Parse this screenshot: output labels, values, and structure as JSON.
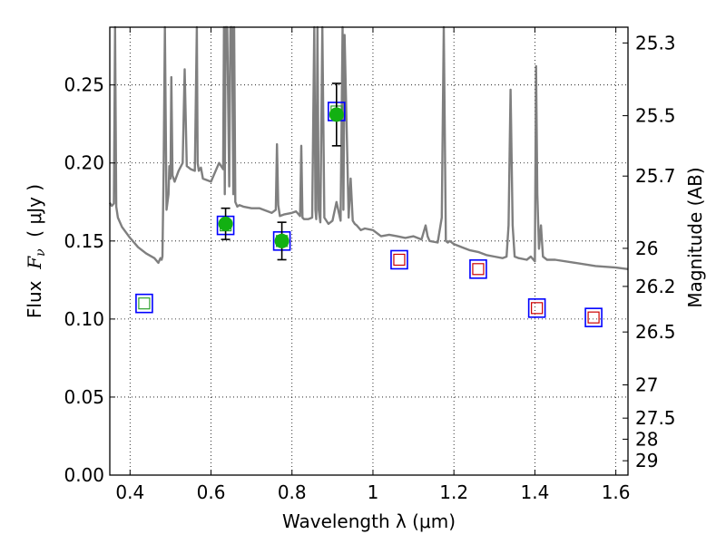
{
  "chart_data": {
    "type": "scatter",
    "xlabel": "Wavelength  λ (μm)",
    "ylabel_parts": {
      "prefix": "Flux  ",
      "symbol": "F",
      "subscript": "ν",
      "suffix": "  ( μJy )"
    },
    "ylabel_right": "Magnitude (AB)",
    "xlim": [
      0.35,
      1.63
    ],
    "ylim": [
      0.0,
      0.287
    ],
    "grid": true,
    "x_ticks": [
      0.4,
      0.6,
      0.8,
      1.0,
      1.2,
      1.4,
      1.6
    ],
    "x_tick_labels": [
      "0.4",
      "0.6",
      "0.8",
      "1",
      "1.2",
      "1.4",
      "1.6"
    ],
    "y_ticks": [
      0.0,
      0.05,
      0.1,
      0.15,
      0.2,
      0.25
    ],
    "y_tick_labels": [
      "0.00",
      "0.05",
      "0.10",
      "0.15",
      "0.20",
      "0.25"
    ],
    "right_ticks": [
      {
        "label": "25.3",
        "flux": 0.2769
      },
      {
        "label": "25.5",
        "flux": 0.2303
      },
      {
        "label": "25.7",
        "flux": 0.1916
      },
      {
        "label": "26",
        "flux": 0.1453
      },
      {
        "label": "26.2",
        "flux": 0.1209
      },
      {
        "label": "26.5",
        "flux": 0.0917
      },
      {
        "label": "27",
        "flux": 0.0578
      },
      {
        "label": "27.5",
        "flux": 0.0365
      },
      {
        "label": "28",
        "flux": 0.023
      },
      {
        "label": "29",
        "flux": 0.0092
      }
    ],
    "model_spectrum": {
      "color": "#7f7f7f",
      "x": [
        0.35,
        0.355,
        0.36,
        0.363,
        0.366,
        0.37,
        0.38,
        0.4,
        0.42,
        0.44,
        0.46,
        0.47,
        0.475,
        0.478,
        0.48,
        0.483,
        0.486,
        0.49,
        0.495,
        0.497,
        0.5,
        0.502,
        0.505,
        0.51,
        0.52,
        0.53,
        0.535,
        0.54,
        0.55,
        0.56,
        0.565,
        0.567,
        0.57,
        0.575,
        0.58,
        0.6,
        0.62,
        0.63,
        0.632,
        0.634,
        0.636,
        0.64,
        0.645,
        0.648,
        0.652,
        0.655,
        0.657,
        0.66,
        0.665,
        0.67,
        0.68,
        0.7,
        0.72,
        0.75,
        0.76,
        0.763,
        0.766,
        0.77,
        0.78,
        0.8,
        0.81,
        0.82,
        0.823,
        0.826,
        0.83,
        0.84,
        0.85,
        0.855,
        0.858,
        0.86,
        0.863,
        0.866,
        0.87,
        0.875,
        0.88,
        0.89,
        0.9,
        0.91,
        0.92,
        0.925,
        0.927,
        0.93,
        0.94,
        0.945,
        0.95,
        0.955,
        0.96,
        0.97,
        0.98,
        1.0,
        1.02,
        1.04,
        1.06,
        1.08,
        1.1,
        1.12,
        1.13,
        1.135,
        1.14,
        1.16,
        1.17,
        1.175,
        1.18,
        1.185,
        1.19,
        1.2,
        1.22,
        1.24,
        1.26,
        1.28,
        1.3,
        1.32,
        1.33,
        1.335,
        1.34,
        1.345,
        1.35,
        1.36,
        1.38,
        1.39,
        1.4,
        1.403,
        1.406,
        1.41,
        1.415,
        1.42,
        1.43,
        1.45,
        1.5,
        1.55,
        1.6,
        1.63
      ],
      "y": [
        0.1745,
        0.1725,
        0.174,
        0.287,
        0.172,
        0.165,
        0.159,
        0.152,
        0.146,
        0.142,
        0.139,
        0.136,
        0.139,
        0.138,
        0.14,
        0.195,
        0.287,
        0.17,
        0.18,
        0.198,
        0.19,
        0.255,
        0.192,
        0.188,
        0.195,
        0.2,
        0.26,
        0.198,
        0.196,
        0.195,
        0.287,
        0.2,
        0.195,
        0.197,
        0.19,
        0.188,
        0.2,
        0.196,
        0.287,
        0.18,
        0.287,
        0.287,
        0.185,
        0.287,
        0.287,
        0.18,
        0.287,
        0.175,
        0.172,
        0.173,
        0.172,
        0.171,
        0.171,
        0.168,
        0.17,
        0.212,
        0.173,
        0.166,
        0.167,
        0.168,
        0.169,
        0.166,
        0.211,
        0.165,
        0.164,
        0.164,
        0.165,
        0.287,
        0.17,
        0.164,
        0.287,
        0.17,
        0.162,
        0.287,
        0.165,
        0.161,
        0.163,
        0.175,
        0.163,
        0.287,
        0.17,
        0.282,
        0.165,
        0.19,
        0.163,
        0.161,
        0.16,
        0.157,
        0.158,
        0.157,
        0.153,
        0.154,
        0.153,
        0.152,
        0.153,
        0.151,
        0.16,
        0.153,
        0.15,
        0.149,
        0.165,
        0.287,
        0.15,
        0.149,
        0.15,
        0.148,
        0.146,
        0.144,
        0.143,
        0.141,
        0.14,
        0.139,
        0.14,
        0.16,
        0.247,
        0.16,
        0.14,
        0.139,
        0.138,
        0.14,
        0.137,
        0.262,
        0.18,
        0.145,
        0.16,
        0.14,
        0.138,
        0.138,
        0.136,
        0.134,
        0.133,
        0.132
      ]
    },
    "photometry_obs": [
      {
        "x": 0.636,
        "y": 0.161,
        "err": 0.01
      },
      {
        "x": 0.775,
        "y": 0.15,
        "err": 0.012
      },
      {
        "x": 0.91,
        "y": 0.231,
        "err": 0.02
      }
    ],
    "photometry_obs_color": "#12b012",
    "model_photometry": [
      {
        "x": 0.435,
        "y": 0.11,
        "inner": "green"
      },
      {
        "x": 0.636,
        "y": 0.16,
        "inner": "green"
      },
      {
        "x": 0.775,
        "y": 0.15,
        "inner": "green"
      },
      {
        "x": 0.91,
        "y": 0.233,
        "inner": "green"
      },
      {
        "x": 1.065,
        "y": 0.138,
        "inner": "red"
      },
      {
        "x": 1.26,
        "y": 0.132,
        "inner": "red"
      },
      {
        "x": 1.405,
        "y": 0.107,
        "inner": "red"
      },
      {
        "x": 1.545,
        "y": 0.101,
        "inner": "red"
      }
    ],
    "colors": {
      "box": "#0000ff",
      "inner_green": "#2ca02c",
      "inner_red": "#cc0000",
      "errorbar": "#000000",
      "grid": "#000000"
    }
  }
}
